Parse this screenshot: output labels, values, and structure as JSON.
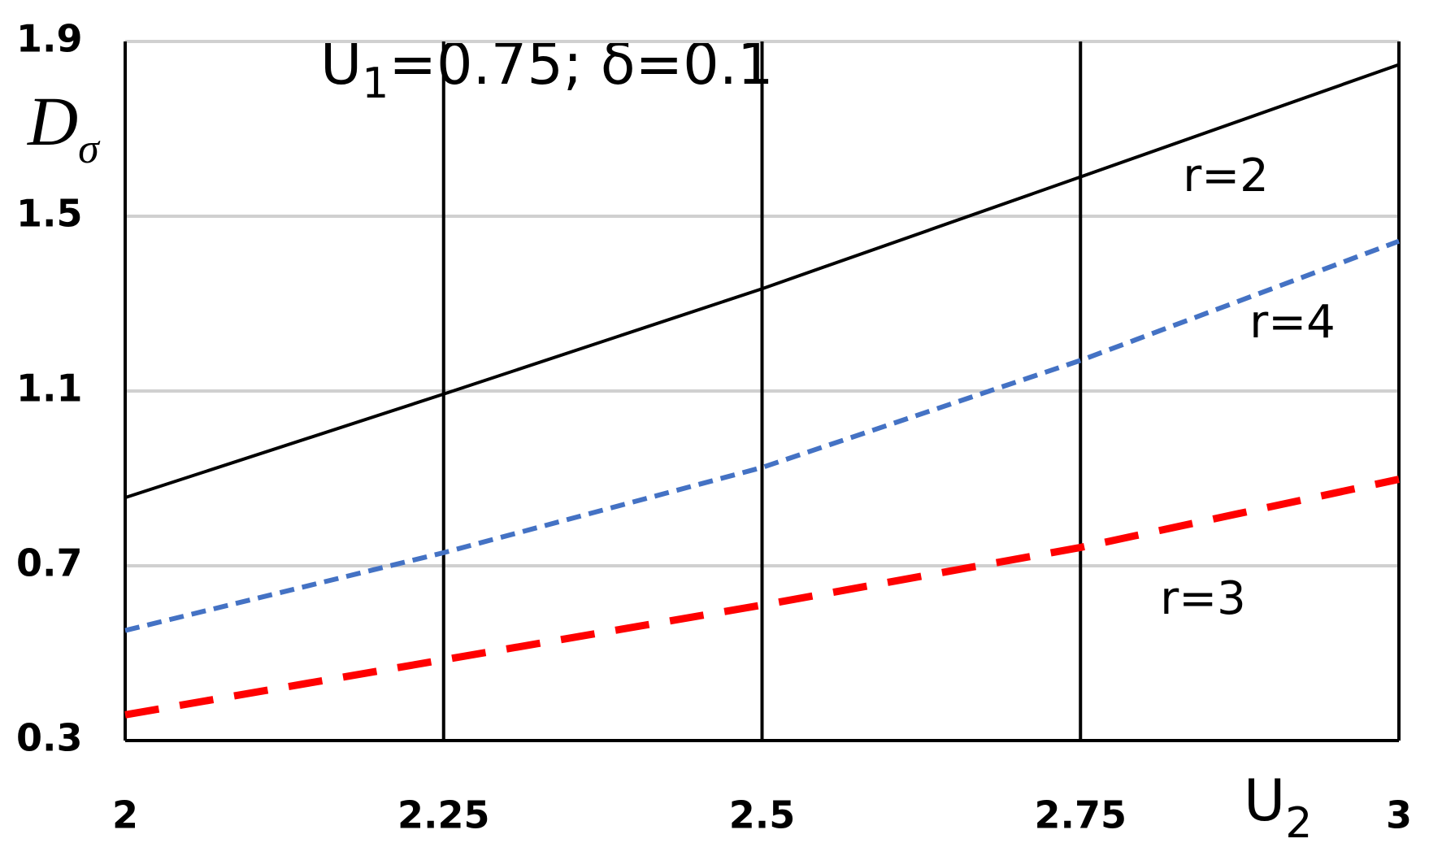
{
  "chart_data": {
    "type": "line",
    "annotation": {
      "main": "U",
      "sub": "1",
      "rest": "=0.75; δ=0.1"
    },
    "y_label": {
      "main": "D",
      "sub": "σ"
    },
    "x_label": {
      "main": "U",
      "sub": "2"
    },
    "x": [
      2,
      2.25,
      2.5,
      2.75,
      3
    ],
    "xlim": [
      2,
      3
    ],
    "xticks": [
      2,
      2.25,
      2.5,
      2.75,
      3
    ],
    "ylim": [
      0.3,
      1.9
    ],
    "yticks": [
      0.3,
      0.7,
      1.1,
      1.5,
      1.9
    ],
    "grid": true,
    "series": [
      {
        "name": "r=2",
        "color": "#000000",
        "linestyle": "solid",
        "values": [
          0.856,
          1.093,
          1.334,
          1.59,
          1.847
        ]
      },
      {
        "name": "r=4",
        "color": "#4472c4",
        "linestyle": "dotted",
        "values": [
          0.552,
          0.73,
          0.925,
          1.17,
          1.443
        ]
      },
      {
        "name": "r=3",
        "color": "#ff0000",
        "linestyle": "dashed",
        "values": [
          0.359,
          0.485,
          0.61,
          0.742,
          0.898
        ]
      }
    ]
  }
}
